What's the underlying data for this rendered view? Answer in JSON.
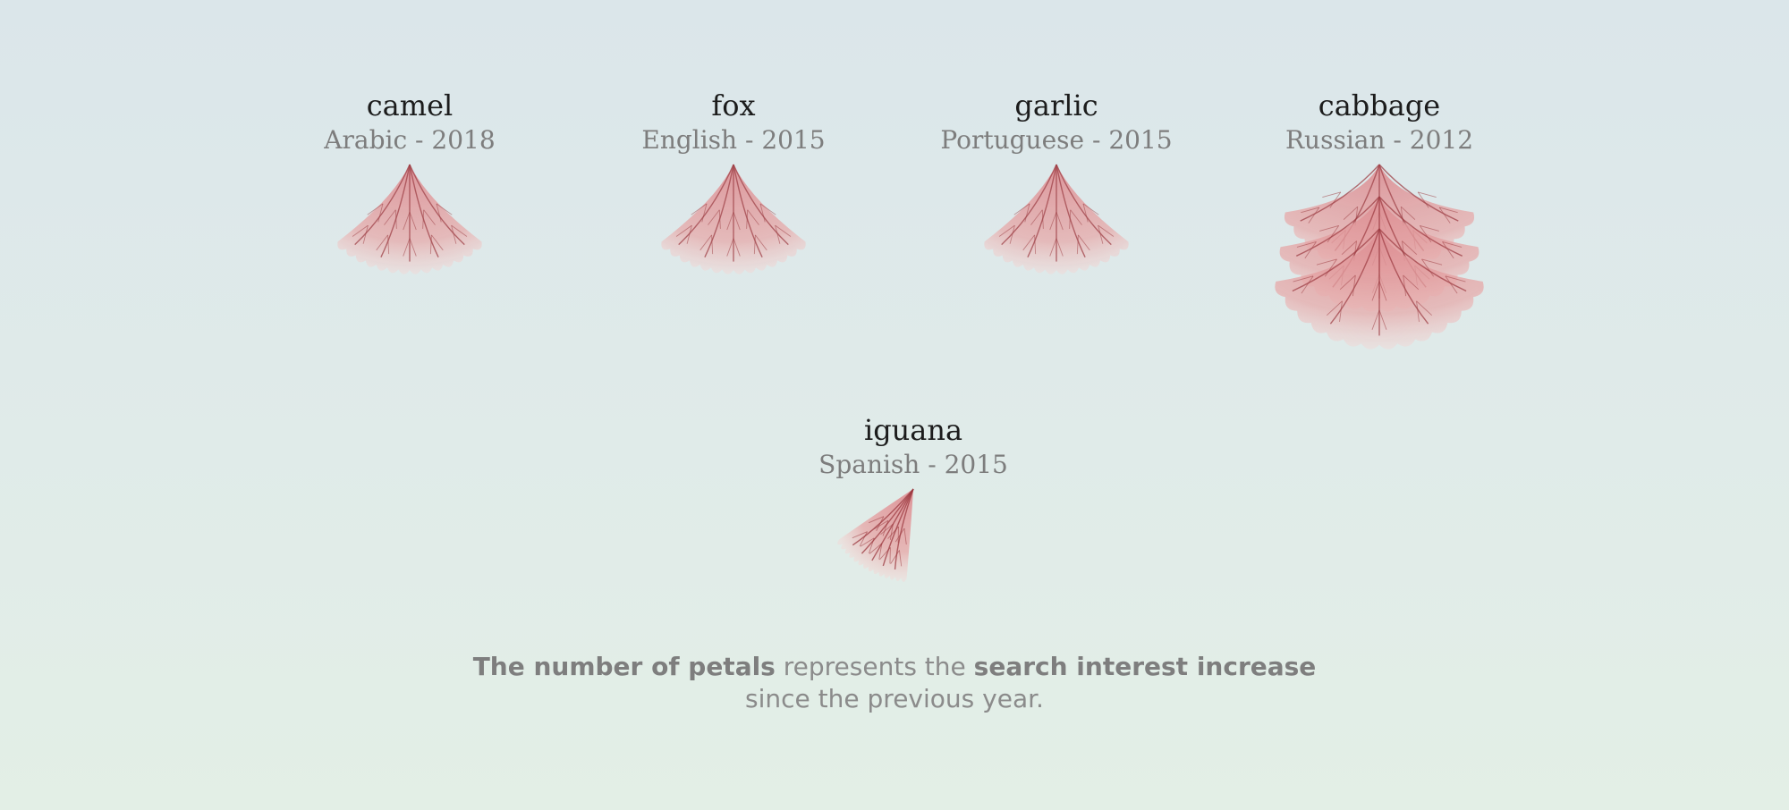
{
  "chart_data": {
    "type": "radial-petal",
    "description_caption": {
      "part1_bold": "The number of petals",
      "part2": " represents the ",
      "part3_bold": "search interest increase",
      "line2": "since the previous year."
    },
    "petal_color": "#e7a6a6",
    "vein_color": "#9c3a40",
    "items": [
      {
        "word": "camel",
        "meta": "Arabic - 2018",
        "petals": 1
      },
      {
        "word": "fox",
        "meta": "English - 2015",
        "petals": 1
      },
      {
        "word": "garlic",
        "meta": "Portuguese - 2015",
        "petals": 1
      },
      {
        "word": "cabbage",
        "meta": "Russian - 2012",
        "petals": 3
      },
      {
        "word": "iguana",
        "meta": "Spanish - 2015",
        "petals": 0.5
      }
    ]
  }
}
